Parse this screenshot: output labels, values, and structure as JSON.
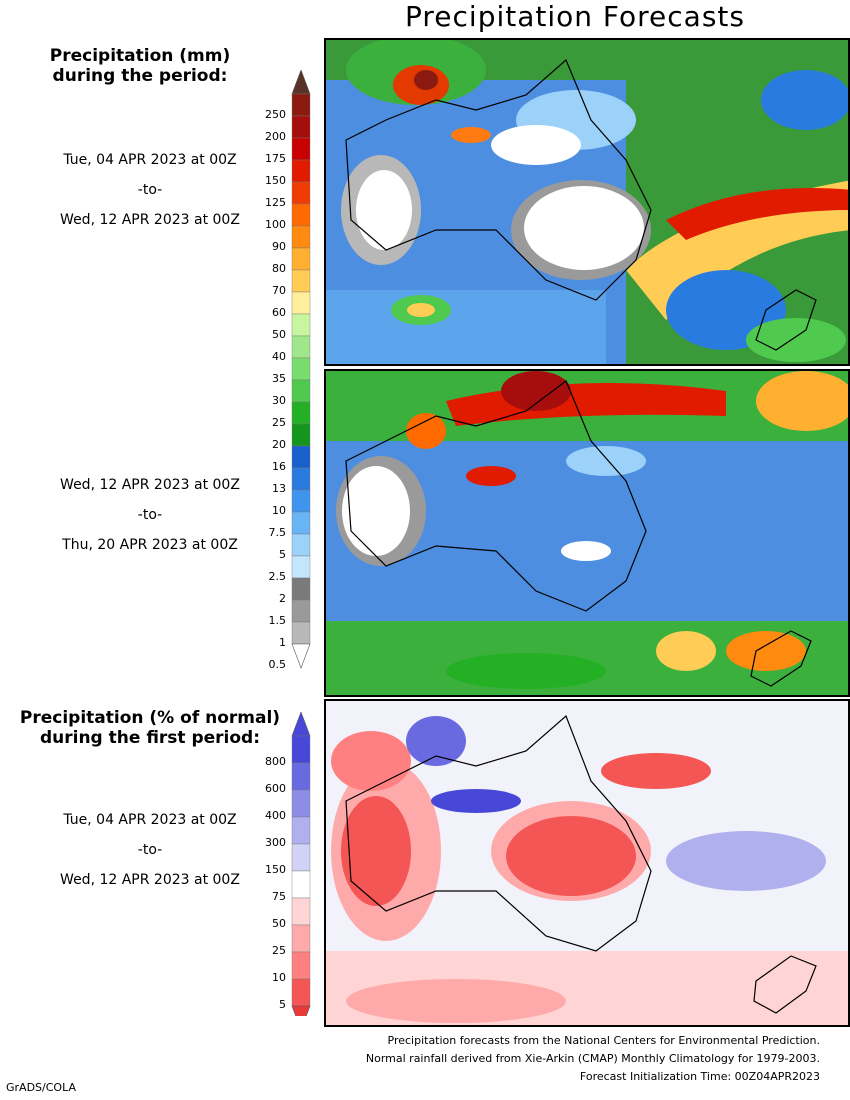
{
  "title": "Precipitation Forecasts",
  "legend_mm": {
    "header_line1": "Precipitation (mm)",
    "header_line2": "during the period:",
    "labels": [
      "250",
      "200",
      "175",
      "150",
      "125",
      "100",
      "90",
      "80",
      "70",
      "60",
      "50",
      "40",
      "35",
      "30",
      "25",
      "20",
      "16",
      "13",
      "10",
      "7.5",
      "5",
      "2.5",
      "2",
      "1.5",
      "1",
      "0.5"
    ],
    "colors": [
      "#8b1a10",
      "#a60d0d",
      "#c80000",
      "#e01b00",
      "#f03c00",
      "#ff6a00",
      "#ff8a10",
      "#ffb030",
      "#ffcc55",
      "#ffee9a",
      "#c8f5a0",
      "#a0e68a",
      "#78dd6e",
      "#4fca4f",
      "#24b024",
      "#14961e",
      "#1a5fcc",
      "#2a7be0",
      "#3f95ee",
      "#68b4f5",
      "#9cd1fa",
      "#c4e6fc",
      "#7a7a7a",
      "#9a9a9a",
      "#b8b8b8",
      "#d4d4d4"
    ]
  },
  "period1": {
    "start": "Tue, 04 APR 2023 at 00Z",
    "sep": "-to-",
    "end": "Wed, 12 APR 2023 at 00Z"
  },
  "period2": {
    "start": "Wed, 12 APR 2023 at 00Z",
    "sep": "-to-",
    "end": "Thu, 20 APR 2023 at 00Z"
  },
  "legend_pct": {
    "header_line1": "Precipitation (% of normal)",
    "header_line2": "during the first period:",
    "labels": [
      "800",
      "600",
      "400",
      "300",
      "150",
      "75",
      "50",
      "25",
      "10",
      "5"
    ],
    "colors": [
      "#4848d8",
      "#6a6ae0",
      "#8d8de8",
      "#b0b0ef",
      "#d2d2f6",
      "#ffffff",
      "#ffd4d4",
      "#ffaaaa",
      "#ff8080",
      "#f45555",
      "#e83a3a"
    ]
  },
  "period3": {
    "start": "Tue, 04 APR 2023 at 00Z",
    "sep": "-to-",
    "end": "Wed, 12 APR 2023 at 00Z"
  },
  "footer": {
    "line1": "Precipitation forecasts from the National Centers for Environmental Prediction.",
    "line2": "Normal rainfall derived from Xie-Arkin (CMAP) Monthly Climatology for 1979-2003.",
    "line3": "Forecast Initialization Time: 00Z04APR2023"
  },
  "credit": "GrADS/COLA"
}
